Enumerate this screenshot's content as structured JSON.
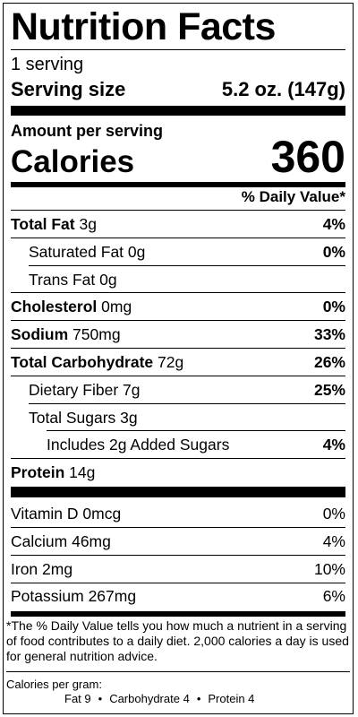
{
  "title": "Nutrition Facts",
  "servings": "1 serving",
  "serving_size": {
    "label": "Serving size",
    "value": "5.2 oz. (147g)"
  },
  "amount_per_serving": "Amount per serving",
  "calories": {
    "label": "Calories",
    "value": "360"
  },
  "daily_value_header": "% Daily Value*",
  "nutrients": [
    {
      "name": "Total Fat",
      "amount": "3g",
      "dv": "4%"
    },
    {
      "name": "Saturated Fat",
      "amount": "0g",
      "dv": "0%"
    },
    {
      "name": "Trans Fat",
      "amount": "0g",
      "dv": ""
    },
    {
      "name": "Cholesterol",
      "amount": "0mg",
      "dv": "0%"
    },
    {
      "name": "Sodium",
      "amount": "750mg",
      "dv": "33%"
    },
    {
      "name": "Total Carbohydrate",
      "amount": "72g",
      "dv": "26%"
    },
    {
      "name": "Dietary Fiber",
      "amount": "7g",
      "dv": "25%"
    },
    {
      "name": "Total Sugars",
      "amount": "3g",
      "dv": ""
    },
    {
      "name": "Includes 2g Added Sugars",
      "amount": "",
      "dv": "4%"
    },
    {
      "name": "Protein",
      "amount": "14g",
      "dv": ""
    }
  ],
  "vitamins": [
    {
      "name": "Vitamin D",
      "amount": "0mcg",
      "dv": "0%"
    },
    {
      "name": "Calcium",
      "amount": "46mg",
      "dv": "4%"
    },
    {
      "name": "Iron",
      "amount": "2mg",
      "dv": "10%"
    },
    {
      "name": "Potassium",
      "amount": "267mg",
      "dv": "6%"
    }
  ],
  "footnote": "*The % Daily Value tells you how much a nutrient in a serving of food contributes to a daily diet. 2,000 calories a day is used for general nutrition advice.",
  "calories_per_gram": {
    "label": "Calories per gram:",
    "fat": "Fat 9",
    "carbohydrate": "Carbohydrate 4",
    "protein": "Protein 4",
    "separator": "•"
  }
}
